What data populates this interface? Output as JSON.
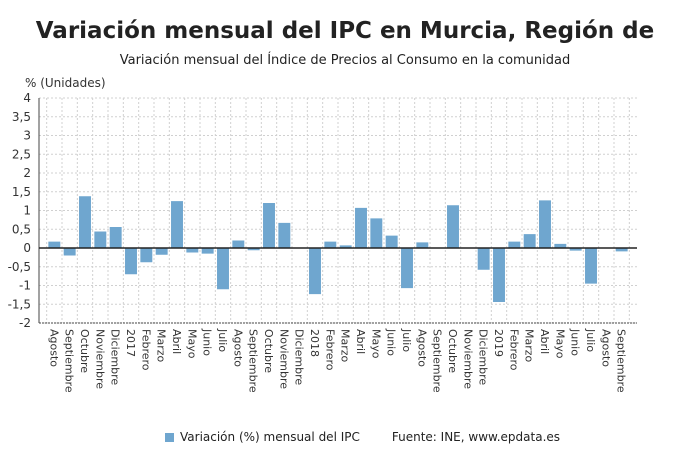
{
  "title": "Variación mensual del IPC en Murcia, Región de",
  "subtitle": "Variación mensual del Índice de Precios al Consumo en la comunidad",
  "source": "Fuente: INE, www.epdata.es",
  "chart_data": {
    "type": "bar",
    "ylabel": "% (Unidades)",
    "ylim": [
      -2,
      4
    ],
    "yticks": [
      "-2",
      "-1,5",
      "-1",
      "-0,5",
      "0",
      "0,5",
      "1",
      "1,5",
      "2",
      "2,5",
      "3",
      "3,5",
      "4"
    ],
    "grid": true,
    "legend_position": "bottom",
    "bar_color": "#6fa6cf",
    "categories": [
      "Agosto",
      "Septiembre",
      "Octubre",
      "Noviembre",
      "Diciembre",
      "2017",
      "Febrero",
      "Marzo",
      "Abril",
      "Mayo",
      "Junio",
      "Julio",
      "Agosto",
      "Septiembre",
      "Octubre",
      "Noviembre",
      "Diciembre",
      "2018",
      "Febrero",
      "Marzo",
      "Abril",
      "Mayo",
      "Junio",
      "Julio",
      "Agosto",
      "Septiembre",
      "Octubre",
      "Noviembre",
      "Diciembre",
      "2019",
      "Febrero",
      "Marzo",
      "Abril",
      "Mayo",
      "Junio",
      "Julio",
      "Agosto",
      "Septiembre"
    ],
    "series": [
      {
        "name": "Variación (%) mensual del IPC",
        "values": [
          0.17,
          -0.2,
          1.38,
          0.44,
          0.56,
          -0.7,
          -0.38,
          -0.18,
          1.25,
          -0.12,
          -0.15,
          -1.1,
          0.2,
          -0.06,
          1.2,
          0.67,
          0,
          -1.23,
          0.17,
          0.07,
          1.07,
          0.79,
          0.33,
          -1.07,
          0.15,
          0,
          1.14,
          0,
          -0.58,
          -1.44,
          0.17,
          0.37,
          1.27,
          0.11,
          -0.07,
          -0.95,
          0,
          -0.09
        ]
      }
    ]
  }
}
